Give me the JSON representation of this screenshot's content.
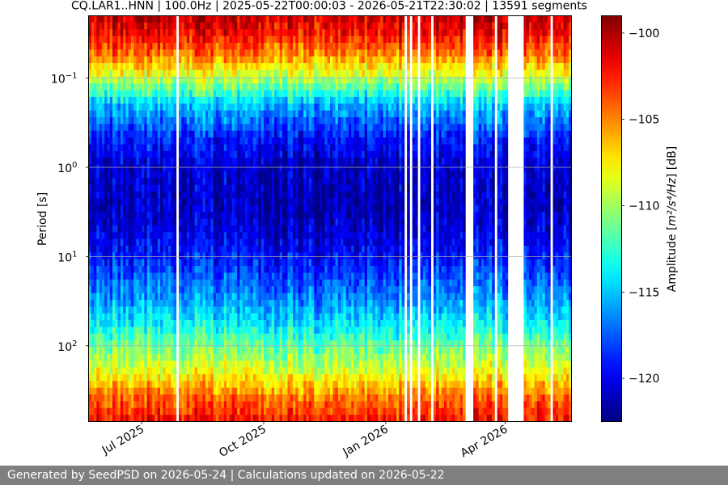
{
  "chart_data": {
    "type": "heatmap",
    "title": "CQ.LAR1..HNN | 100.0Hz | 2025-05-22T00:00:03 - 2026-05-21T22:30:02 | 13591 segments",
    "ylabel": "Period [s]",
    "y_scale": "log",
    "y_inverted": true,
    "ylim": [
      0.02,
      707
    ],
    "xlim": [
      "2025-05-22",
      "2026-05-21"
    ],
    "x_ticks": [
      {
        "date": "2025-07-01",
        "label": "Jul 2025"
      },
      {
        "date": "2025-10-01",
        "label": "Oct 2025"
      },
      {
        "date": "2026-01-01",
        "label": "Jan 2026"
      },
      {
        "date": "2026-04-01",
        "label": "Apr 2026"
      }
    ],
    "y_ticks": [
      {
        "value": 0.1,
        "base": "10",
        "exp": "−1"
      },
      {
        "value": 1,
        "base": "10",
        "exp": "0"
      },
      {
        "value": 10,
        "base": "10",
        "exp": "1"
      },
      {
        "value": 100,
        "base": "10",
        "exp": "2"
      }
    ],
    "grid": true,
    "colormap": "jet",
    "colorbar": {
      "label_prefix": "Amplitude [",
      "label_unit": "m²/s⁴/Hz",
      "label_suffix": "] [dB]",
      "range": [
        -122.5,
        -99
      ],
      "ticks": [
        -100,
        -105,
        -110,
        -115,
        -120
      ],
      "tick_labels": [
        "−100",
        "−105",
        "−110",
        "−115",
        "−120"
      ]
    },
    "period_profile_db": [
      {
        "period": 0.02,
        "db": -100.5
      },
      {
        "period": 0.03,
        "db": -101.5
      },
      {
        "period": 0.05,
        "db": -104
      },
      {
        "period": 0.1,
        "db": -109
      },
      {
        "period": 0.2,
        "db": -115
      },
      {
        "period": 0.5,
        "db": -119
      },
      {
        "period": 1,
        "db": -120.5
      },
      {
        "period": 3,
        "db": -121
      },
      {
        "period": 10,
        "db": -119
      },
      {
        "period": 30,
        "db": -116
      },
      {
        "period": 60,
        "db": -113.5
      },
      {
        "period": 100,
        "db": -111
      },
      {
        "period": 200,
        "db": -108
      },
      {
        "period": 400,
        "db": -104
      },
      {
        "period": 700,
        "db": -102
      }
    ],
    "data_gaps": [
      [
        "2025-07-27",
        "2025-07-29"
      ],
      [
        "2026-01-15",
        "2026-01-16"
      ],
      [
        "2026-01-19",
        "2026-01-20"
      ],
      [
        "2026-01-25",
        "2026-01-26"
      ],
      [
        "2026-02-04",
        "2026-02-05"
      ],
      [
        "2026-02-13",
        "2026-02-14"
      ],
      [
        "2026-02-21",
        "2026-02-22"
      ],
      [
        "2026-03-01",
        "2026-03-07"
      ],
      [
        "2026-03-23",
        "2026-03-25"
      ],
      [
        "2026-04-02",
        "2026-04-14"
      ],
      [
        "2026-04-28",
        "2026-04-29"
      ],
      [
        "2026-05-05",
        "2026-05-06"
      ],
      [
        "2026-05-10",
        "2026-05-11"
      ],
      [
        "2026-05-14",
        "2026-05-15"
      ]
    ]
  },
  "footer": {
    "text": "Generated by SeedPSD on 2026-05-24 | Calculations updated on 2026-05-22"
  }
}
